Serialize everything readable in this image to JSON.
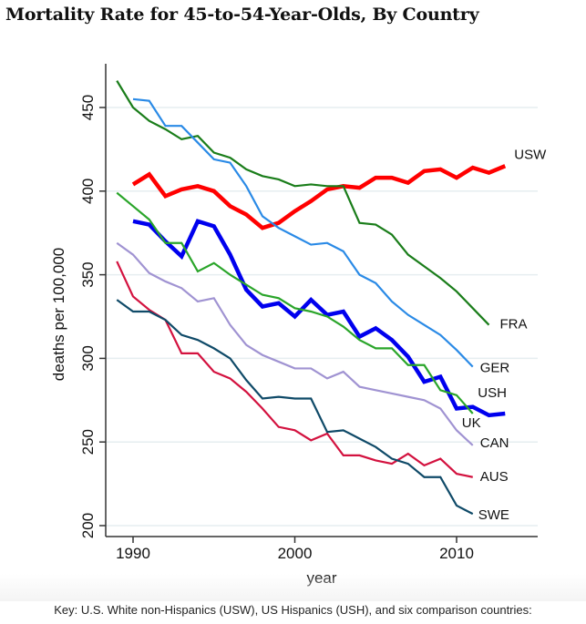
{
  "title": "Mortality Rate for 45-to-54-Year-Olds, By Country",
  "key": "Key: U.S. White non-Hispanics (USW), US Hispanics (USH), and six comparison countries:",
  "chart_data": {
    "type": "line",
    "title": "Mortality Rate for 45-to-54-Year-Olds, By Country",
    "xlabel": "year",
    "ylabel": "deaths per 100,000",
    "xlim": [
      1988,
      2015
    ],
    "ylim": [
      195,
      470
    ],
    "xticks": [
      1990,
      2000,
      2010
    ],
    "yticks": [
      200,
      250,
      300,
      350,
      400,
      450
    ],
    "grid": "horizontal",
    "legend": "labels at line ends (right)",
    "series": [
      {
        "name": "USW",
        "color": "#ff0000",
        "width": 4.5,
        "start": 1990,
        "values": [
          404,
          410,
          397,
          401,
          403,
          400,
          391,
          386,
          378,
          381,
          388,
          394,
          401,
          403,
          402,
          408,
          408,
          405,
          412,
          413,
          408,
          414,
          411,
          415
        ]
      },
      {
        "name": "FRA",
        "color": "#1a7d1a",
        "width": 2.2,
        "start": 1989,
        "values": [
          466,
          450,
          442,
          437,
          431,
          433,
          423,
          420,
          413,
          409,
          407,
          403,
          404,
          403,
          403,
          381,
          380,
          374,
          362,
          355,
          348,
          340,
          330,
          320
        ]
      },
      {
        "name": "GER",
        "color": "#2a8ae6",
        "width": 2.2,
        "start": 1990,
        "values": [
          455,
          454,
          439,
          439,
          429,
          419,
          417,
          403,
          385,
          378,
          373,
          368,
          369,
          364,
          350,
          345,
          334,
          326,
          320,
          314,
          305,
          295
        ]
      },
      {
        "name": "USH",
        "color": "#0000ee",
        "width": 4.5,
        "start": 1990,
        "values": [
          382,
          380,
          370,
          361,
          382,
          379,
          362,
          341,
          331,
          333,
          325,
          335,
          326,
          328,
          313,
          318,
          311,
          301,
          286,
          289,
          270,
          271,
          266,
          267
        ]
      },
      {
        "name": "UK",
        "color": "#2aa52a",
        "width": 2.2,
        "start": 1989,
        "values": [
          399,
          391,
          383,
          369,
          369,
          352,
          357,
          350,
          344,
          338,
          336,
          330,
          328,
          325,
          319,
          311,
          306,
          306,
          296,
          296,
          281,
          278,
          267
        ]
      },
      {
        "name": "CAN",
        "color": "#a093d2",
        "width": 2.2,
        "start": 1989,
        "values": [
          369,
          362,
          351,
          346,
          342,
          334,
          336,
          320,
          308,
          302,
          298,
          294,
          294,
          288,
          292,
          283,
          281,
          279,
          277,
          275,
          270,
          257,
          248
        ]
      },
      {
        "name": "AUS",
        "color": "#d3123f",
        "width": 2.2,
        "start": 1989,
        "values": [
          358,
          337,
          329,
          323,
          303,
          303,
          292,
          288,
          280,
          270,
          259,
          257,
          251,
          255,
          242,
          242,
          239,
          237,
          243,
          236,
          240,
          231,
          229
        ]
      },
      {
        "name": "SWE",
        "color": "#0f4a68",
        "width": 2.2,
        "start": 1989,
        "values": [
          335,
          328,
          328,
          323,
          314,
          311,
          306,
          300,
          287,
          276,
          277,
          276,
          276,
          256,
          257,
          252,
          247,
          240,
          237,
          229,
          229,
          212,
          207
        ]
      }
    ]
  }
}
